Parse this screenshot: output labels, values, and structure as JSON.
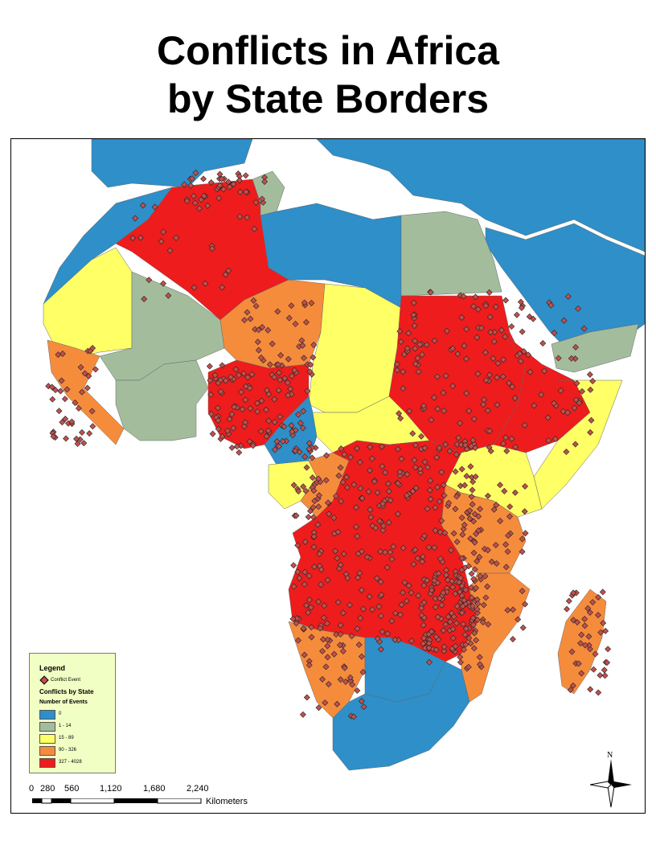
{
  "title": {
    "line1": "Conflicts in Africa",
    "line2": "by State Borders"
  },
  "legend": {
    "title": "Legend",
    "event_label": "Conflict Event",
    "subtitle": "Conflicts by State",
    "subtitle2": "Number of Events",
    "classes": [
      {
        "label": "0",
        "color": "#2e8fc9"
      },
      {
        "label": "1 - 14",
        "color": "#a3bd9c"
      },
      {
        "label": "15 - 89",
        "color": "#ffff66"
      },
      {
        "label": "90 - 326",
        "color": "#f58c3c"
      },
      {
        "label": "327 - 4028",
        "color": "#ee1c1c"
      }
    ]
  },
  "scale_bar": {
    "ticks": [
      "0",
      "280",
      "560",
      "1,120",
      "1,680",
      "2,240"
    ],
    "unit": "Kilometers"
  },
  "north_arrow": {
    "label": "N"
  },
  "colors": {
    "ocean": "#ffffff",
    "event_fill": "#c0504d",
    "event_stroke": "#222222"
  }
}
